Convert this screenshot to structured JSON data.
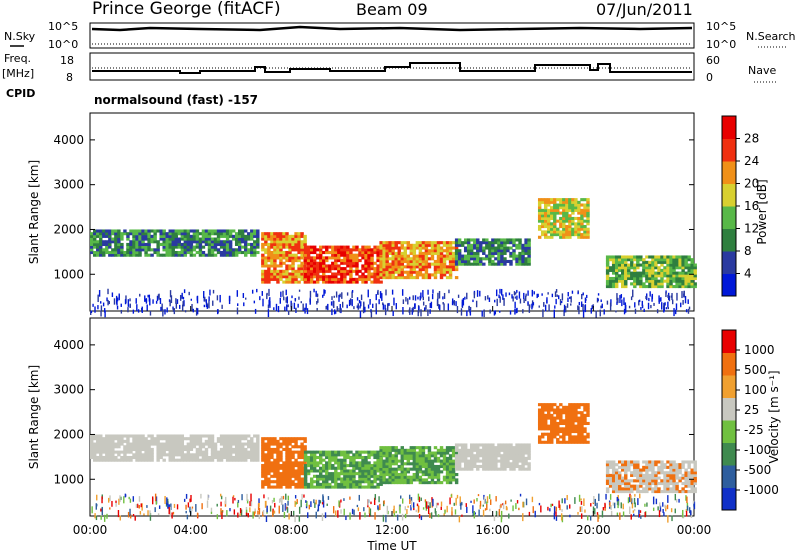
{
  "header": {
    "station": "Prince George (fitACF)",
    "beam": "Beam 09",
    "date": "07/Jun/2011"
  },
  "noise_panel": {
    "left_label": "N.Sky",
    "right_label": "N.Search",
    "left_ticks": [
      "10^5",
      "10^0"
    ],
    "right_ticks": [
      "10^5",
      "10^0"
    ]
  },
  "freq_panel": {
    "left_label": "Freq.",
    "left_unit": "[MHz]",
    "cpid_label": "CPID",
    "right_label": "Nave",
    "left_ticks": [
      "18",
      "8"
    ],
    "right_ticks": [
      "60",
      "0"
    ]
  },
  "cpid_text": "normalsound (fast) -157",
  "chart_data": [
    {
      "type": "heatmap",
      "panel": "power",
      "ylabel": "Slant Range [km]",
      "yticks": [
        "4000",
        "3000",
        "2000",
        "1000"
      ],
      "ylim": [
        180,
        4600
      ],
      "colorbar_label": "Power [dB]",
      "colorbar_ticks": [
        "28",
        "24",
        "20",
        "16",
        "12",
        "8",
        "4"
      ],
      "colors": [
        "#0018d8",
        "#2a3aa0",
        "#2f7f3f",
        "#58b848",
        "#d8d030",
        "#f09018",
        "#f03010",
        "#e80000"
      ],
      "bands": [
        {
          "t": [
            0.0,
            6.7
          ],
          "range": [
            1400,
            1950
          ],
          "level": 2
        },
        {
          "t": [
            6.8,
            8.5
          ],
          "range": [
            800,
            1900
          ],
          "level": 5
        },
        {
          "t": [
            8.5,
            11.5
          ],
          "range": [
            800,
            1600
          ],
          "level": 6
        },
        {
          "t": [
            11.5,
            14.5
          ],
          "range": [
            900,
            1700
          ],
          "level": 5
        },
        {
          "t": [
            14.5,
            17.5
          ],
          "range": [
            1200,
            1800
          ],
          "level": 2
        },
        {
          "t": [
            17.8,
            19.8
          ],
          "range": [
            1800,
            2700
          ],
          "level": 4
        },
        {
          "t": [
            20.5,
            24.0
          ],
          "range": [
            700,
            1400
          ],
          "level": 3
        }
      ]
    },
    {
      "type": "heatmap",
      "panel": "velocity",
      "ylabel": "Slant Range [km]",
      "yticks": [
        "4000",
        "3000",
        "2000",
        "1000"
      ],
      "ylim": [
        180,
        4600
      ],
      "colorbar_label": "Velocity [m s⁻¹]",
      "colorbar_ticks": [
        "1000",
        "500",
        "100",
        "25",
        "-25",
        "-100",
        "-500",
        "-1000"
      ],
      "colors": [
        "#1030c8",
        "#2e5e9e",
        "#3f8a4f",
        "#70c040",
        "#c8c8c0",
        "#f0a030",
        "#f07010",
        "#e80000"
      ],
      "xlabel": "Time UT",
      "xticks": [
        "00:00",
        "04:00",
        "08:00",
        "12:00",
        "16:00",
        "20:00",
        "00:00"
      ],
      "xlim": [
        0,
        24
      ]
    }
  ]
}
